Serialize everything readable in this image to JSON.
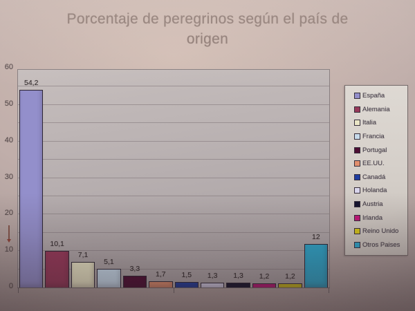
{
  "header": {
    "title_line1": "Porcentaje de peregrinos según el país de",
    "title_line2": "origen"
  },
  "chart_data": {
    "type": "bar",
    "title": "Porcentaje de peregrinos según el país de origen",
    "xlabel": "",
    "ylabel": "",
    "categories": [
      "España",
      "Alemania",
      "Italia",
      "Francia",
      "Portugal",
      "EE.UU.",
      "Canadá",
      "Holanda",
      "Austria",
      "Irlanda",
      "Reino Unido",
      "Otros Paises"
    ],
    "values": [
      54.2,
      10.1,
      7.1,
      5.1,
      3.3,
      1.7,
      1.5,
      1.3,
      1.3,
      1.2,
      1.2,
      12
    ],
    "value_labels": [
      "54,2",
      "10,1",
      "7,1",
      "5,1",
      "3,3",
      "1,7",
      "1,5",
      "1,3",
      "1,3",
      "1,2",
      "1,2",
      "12"
    ],
    "bar_colors": [
      "#938fcb",
      "#97395a",
      "#eae6c6",
      "#c6daea",
      "#4d0e33",
      "#e18f6e",
      "#1f3da0",
      "#d9d5ec",
      "#15142e",
      "#c2187a",
      "#d4c41c",
      "#2ea4c8"
    ],
    "ylim": [
      0,
      60
    ],
    "yticks": [
      0,
      10,
      20,
      30,
      40,
      50,
      60
    ],
    "grid_step": 5,
    "grid": true,
    "legend_position": "right"
  },
  "annotations": {
    "pointer_mark": "down-arrow"
  }
}
